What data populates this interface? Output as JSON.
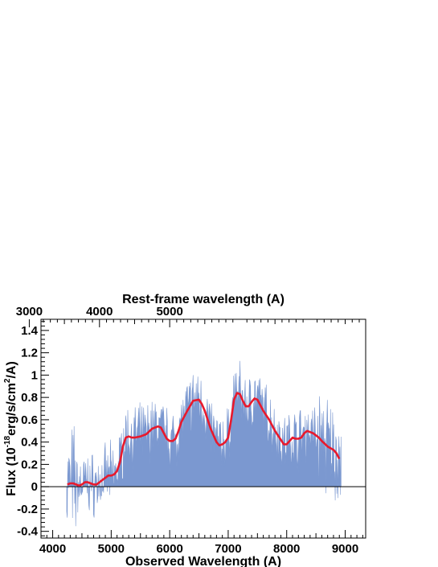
{
  "chart_data": {
    "type": "line",
    "xlabel": "Observed Wavelength (A)",
    "ylabel_parts": [
      "Flux (10",
      "-18",
      "erg/s/cm",
      "2",
      "/A)"
    ],
    "top_axis_label": "Rest-frame wavelength (A)",
    "xlim": [
      3800,
      9350
    ],
    "ylim": [
      -0.46,
      1.5
    ],
    "x_ticks": [
      4000,
      5000,
      6000,
      7000,
      8000,
      9000
    ],
    "y_ticks": [
      -0.4,
      -0.2,
      0,
      0.2,
      0.4,
      0.6,
      0.8,
      1.0,
      1.2,
      1.4
    ],
    "y_tick_labels": [
      "-0.4",
      "-0.2",
      "0",
      "0.2",
      "0.4",
      "0.6",
      "0.8",
      "1",
      "1.2",
      "1.4"
    ],
    "top_ticks": [
      3000,
      4000,
      5000
    ],
    "rest_frame_conversion": "observed = rest * 1.2",
    "colors": {
      "raw_spectrum": "#7b98d0",
      "smoothed": "#e8192c",
      "axis": "#000000"
    },
    "series": [
      {
        "kind": "smoothed",
        "x": [
          4250,
          4300,
          4350,
          4400,
          4450,
          4500,
          4550,
          4600,
          4650,
          4700,
          4750,
          4800,
          4850,
          4900,
          4950,
          5000,
          5050,
          5100,
          5150,
          5200,
          5250,
          5300,
          5350,
          5400,
          5500,
          5600,
          5700,
          5800,
          5850,
          5900,
          5950,
          6000,
          6050,
          6100,
          6150,
          6200,
          6300,
          6400,
          6500,
          6550,
          6600,
          6700,
          6800,
          6850,
          6900,
          6950,
          7000,
          7050,
          7100,
          7150,
          7200,
          7250,
          7300,
          7350,
          7400,
          7450,
          7500,
          7550,
          7600,
          7700,
          7800,
          7900,
          7950,
          8000,
          8050,
          8100,
          8150,
          8200,
          8250,
          8300,
          8350,
          8400,
          8450,
          8500,
          8550,
          8600,
          8700,
          8800,
          8850,
          8900
        ],
        "y": [
          0.02,
          0.03,
          0.03,
          0.02,
          0.01,
          0.02,
          0.04,
          0.04,
          0.03,
          0.02,
          0.02,
          0.04,
          0.06,
          0.08,
          0.1,
          0.1,
          0.11,
          0.14,
          0.22,
          0.36,
          0.44,
          0.45,
          0.44,
          0.44,
          0.45,
          0.47,
          0.52,
          0.54,
          0.53,
          0.48,
          0.43,
          0.41,
          0.41,
          0.43,
          0.5,
          0.58,
          0.68,
          0.77,
          0.78,
          0.74,
          0.68,
          0.52,
          0.4,
          0.37,
          0.38,
          0.4,
          0.44,
          0.6,
          0.78,
          0.84,
          0.83,
          0.77,
          0.72,
          0.72,
          0.76,
          0.79,
          0.78,
          0.73,
          0.68,
          0.6,
          0.5,
          0.42,
          0.38,
          0.38,
          0.41,
          0.44,
          0.43,
          0.43,
          0.44,
          0.48,
          0.5,
          0.49,
          0.48,
          0.46,
          0.44,
          0.41,
          0.36,
          0.33,
          0.3,
          0.25
        ]
      }
    ],
    "raw_spectrum": {
      "kind": "raw",
      "x_range": [
        4240,
        8930
      ],
      "step": 9,
      "noise_amplitude": 0.22,
      "seed": 7
    }
  }
}
